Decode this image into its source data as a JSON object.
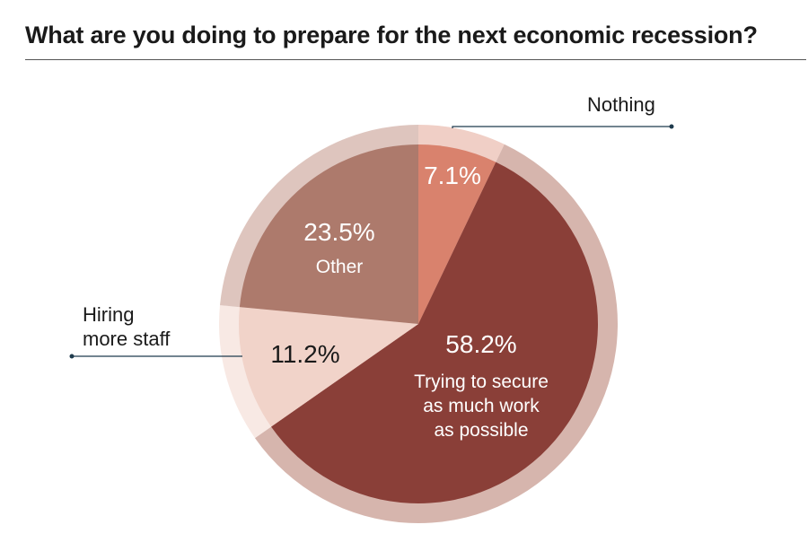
{
  "chart_data": {
    "type": "pie",
    "title": "What are you doing to prepare for the next economic recession?",
    "slices": [
      {
        "name": "Nothing",
        "value": 7.1,
        "label": "7.1%",
        "color": "#d9826d",
        "outer_color": "#f0cfc6"
      },
      {
        "name": "Trying to secure as much work as possible",
        "value": 58.2,
        "label": "58.2%",
        "color": "#8a3f38",
        "outer_color": "#d6b5ad"
      },
      {
        "name": "Hiring more staff",
        "value": 11.2,
        "label": "11.2%",
        "color": "#f1d3c9",
        "outer_color": "#f8e9e4"
      },
      {
        "name": "Other",
        "value": 23.5,
        "label": "23.5%",
        "color": "#ad7a6c",
        "outer_color": "#dec5be"
      }
    ],
    "labels": {
      "nothing": "Nothing",
      "secure_lines": [
        "Trying to secure",
        "as much work",
        "as possible"
      ],
      "hiring_lines": [
        "Hiring",
        "more staff"
      ],
      "other": "Other"
    },
    "accent_colors": {
      "leader_line": "#1f3b4d"
    }
  }
}
